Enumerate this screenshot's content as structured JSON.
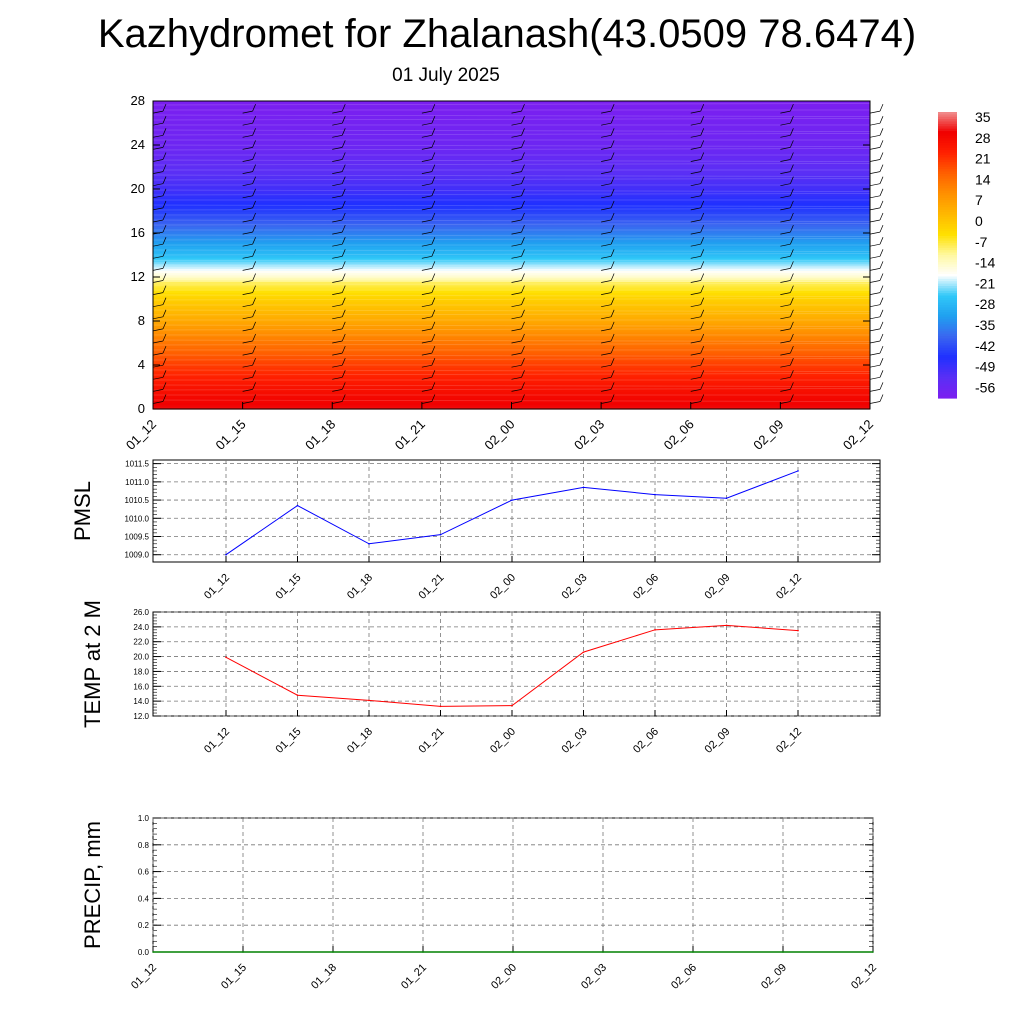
{
  "header": {
    "title": "Kazhydromet for Zhalanash(43.0509 78.6474)",
    "date": "01 July 2025"
  },
  "chart_data": [
    {
      "type": "heatmap",
      "name": "cross-section",
      "x_ticks": [
        "01_12",
        "01_15",
        "01_18",
        "01_21",
        "02_00",
        "02_03",
        "02_06",
        "02_09",
        "02_12"
      ],
      "y_ticks": [
        0,
        4,
        8,
        12,
        16,
        20,
        24,
        28
      ],
      "ylim": [
        0,
        28
      ],
      "colorbar_labels": [
        "35",
        "28",
        "21",
        "14",
        "7",
        "0",
        "-7",
        "-14",
        "-21",
        "-28",
        "-35",
        "-42",
        "-49",
        "-56"
      ],
      "colorbar_range": [
        -60,
        38
      ],
      "temperature_profile": [
        {
          "level": 0,
          "value": 32
        },
        {
          "level": 2,
          "value": 27
        },
        {
          "level": 4,
          "value": 21
        },
        {
          "level": 6,
          "value": 14
        },
        {
          "level": 8,
          "value": 6
        },
        {
          "level": 10,
          "value": -1
        },
        {
          "level": 11.5,
          "value": -8
        },
        {
          "level": 12,
          "value": -14
        },
        {
          "level": 14,
          "value": -27
        },
        {
          "level": 16,
          "value": -36
        },
        {
          "level": 18,
          "value": -44
        },
        {
          "level": 20,
          "value": -50
        },
        {
          "level": 21.5,
          "value": -53
        },
        {
          "level": 24,
          "value": -57
        },
        {
          "level": 28,
          "value": -60
        }
      ],
      "colors": {
        "scale": [
          "#7b1ff0",
          "#5a2ff5",
          "#2030ff",
          "#3a66f0",
          "#20a0f0",
          "#30c8f8",
          "#ffffff",
          "#fff8a0",
          "#ffe000",
          "#ffb800",
          "#ff9000",
          "#ff6000",
          "#ff2000",
          "#f00000",
          "#f09090"
        ]
      }
    },
    {
      "type": "line",
      "ylabel": "PMSL",
      "x": [
        "01_12",
        "01_15",
        "01_18",
        "01_21",
        "02_00",
        "02_03",
        "02_06",
        "02_09",
        "02_12"
      ],
      "values": [
        1009.0,
        1010.35,
        1009.3,
        1009.55,
        1010.5,
        1010.85,
        1010.65,
        1010.55,
        1011.3
      ],
      "y_ticks": [
        "1009.0",
        "1009.5",
        "1010.0",
        "1010.5",
        "1011.0",
        "1011.5"
      ],
      "ylim": [
        1008.8,
        1011.6
      ],
      "color": "#0000ff",
      "grid": true
    },
    {
      "type": "line",
      "ylabel": "TEMP at 2 M",
      "x": [
        "01_12",
        "01_15",
        "01_18",
        "01_21",
        "02_00",
        "02_03",
        "02_06",
        "02_09",
        "02_12"
      ],
      "values": [
        19.9,
        14.8,
        14.1,
        13.3,
        13.4,
        20.6,
        23.6,
        24.2,
        23.5
      ],
      "y_ticks": [
        "12.0",
        "14.0",
        "16.0",
        "18.0",
        "20.0",
        "22.0",
        "24.0",
        "26.0"
      ],
      "ylim": [
        12,
        26
      ],
      "color": "#ff0000",
      "grid": true
    },
    {
      "type": "line",
      "ylabel": "PRECIP, mm",
      "x_ticks": [
        "01_12",
        "01_15",
        "01_18",
        "01_21",
        "02_00",
        "02_03",
        "02_06",
        "02_09",
        "02_12"
      ],
      "values": [
        0,
        0,
        0,
        0,
        0,
        0,
        0,
        0,
        0
      ],
      "y_ticks": [
        "0.0",
        "0.2",
        "0.4",
        "0.6",
        "0.8",
        "1.0"
      ],
      "ylim": [
        0,
        1
      ],
      "color": "#008000",
      "grid": true
    }
  ]
}
